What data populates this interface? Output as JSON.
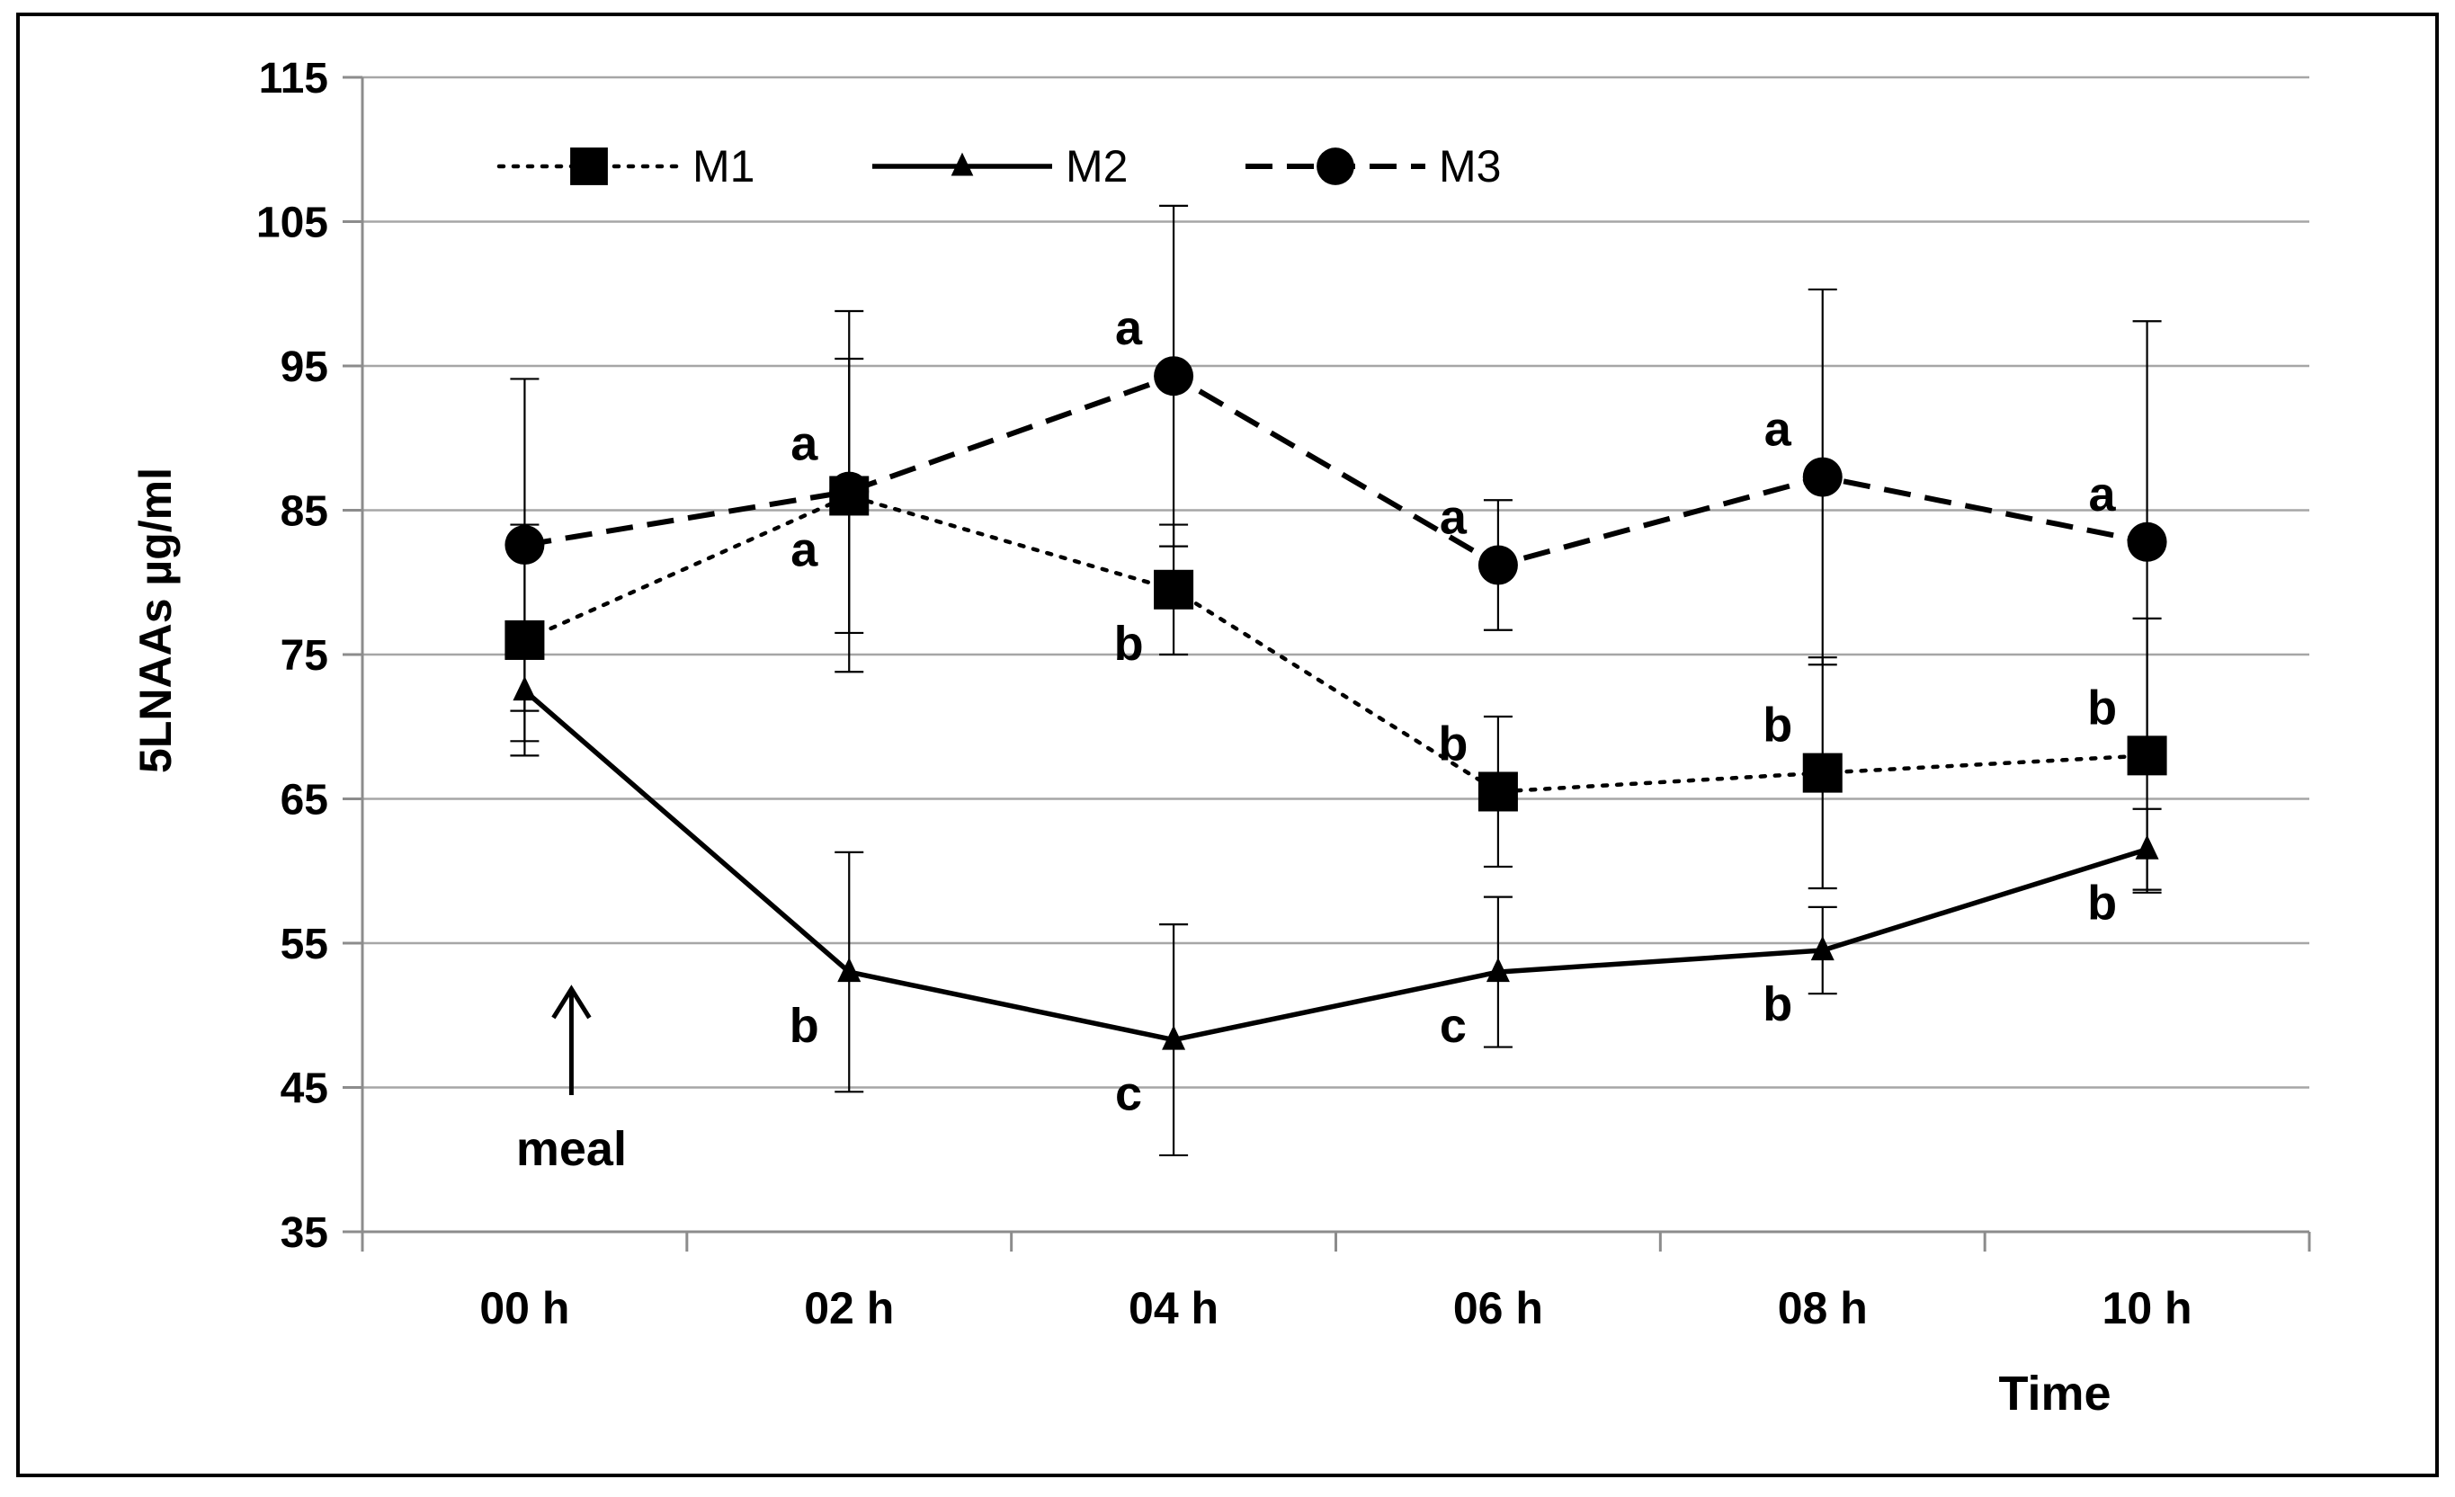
{
  "chart_data": {
    "type": "line",
    "title": "",
    "xlabel": "Time",
    "ylabel": "5LNAAs µg/ml",
    "categories": [
      "00 h",
      "02 h",
      "04 h",
      "06 h",
      "08 h",
      "10 h"
    ],
    "ylim": [
      35,
      115
    ],
    "yticks": [
      35,
      45,
      55,
      65,
      75,
      85,
      95,
      105,
      115
    ],
    "grid": true,
    "legend_position": "top-left",
    "series": [
      {
        "name": "M1",
        "marker": "square",
        "line_style": "dotted",
        "values": [
          76,
          86,
          79.5,
          65.5,
          66.8,
          68
        ],
        "error": [
          8,
          9.5,
          4.5,
          5.2,
          8,
          9.5
        ],
        "letters": [
          "",
          "a",
          "b",
          "b",
          "b",
          "b"
        ],
        "letter_side": [
          "above",
          "below",
          "below",
          "above",
          "above",
          "above"
        ]
      },
      {
        "name": "M2",
        "marker": "triangle",
        "line_style": "solid",
        "values": [
          72.5,
          53,
          48.3,
          53,
          54.5,
          61.5
        ],
        "error": [
          3.5,
          8.3,
          8,
          5.2,
          3,
          2.8
        ],
        "letters": [
          "",
          "b",
          "c",
          "c",
          "b",
          "b"
        ],
        "letter_side": [
          "below",
          "below",
          "below",
          "below",
          "below",
          "below"
        ]
      },
      {
        "name": "M3",
        "marker": "circle",
        "line_style": "dashed",
        "values": [
          82.6,
          86.3,
          94.3,
          81.2,
          87.3,
          82.8
        ],
        "error": [
          11.5,
          12.5,
          11.8,
          4.5,
          13,
          15.3
        ],
        "letters": [
          "",
          "a",
          "a",
          "a",
          "a",
          "a"
        ],
        "letter_side": [
          "above",
          "above",
          "above",
          "above",
          "above",
          "above"
        ]
      }
    ],
    "annotations": [
      {
        "text": "meal",
        "category": "00 h",
        "arrow": "up"
      }
    ]
  }
}
